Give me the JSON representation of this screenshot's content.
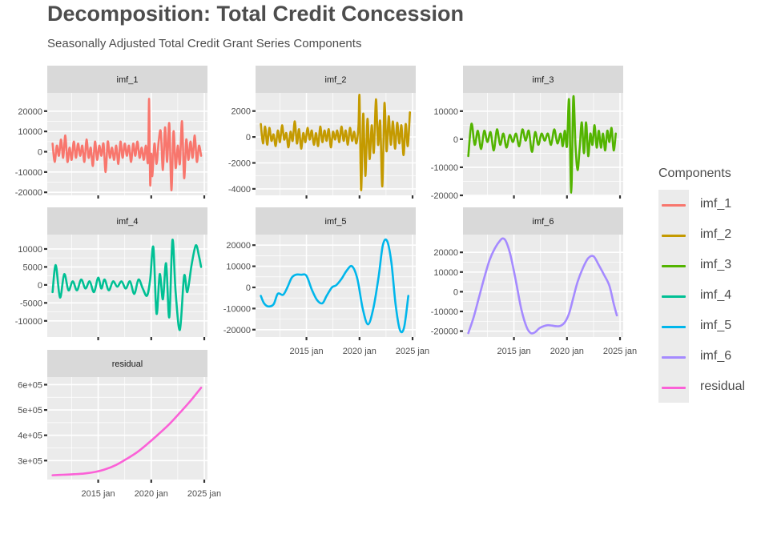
{
  "title": "Decomposition: Total Credit Concession",
  "subtitle": "Seasonally Adjusted Total Credit Grant Series Components",
  "legend": {
    "title": "Components",
    "items": [
      {
        "label": "imf_1",
        "color": "#F8766D"
      },
      {
        "label": "imf_2",
        "color": "#C49A00"
      },
      {
        "label": "imf_3",
        "color": "#53B400"
      },
      {
        "label": "imf_4",
        "color": "#00C094"
      },
      {
        "label": "imf_5",
        "color": "#00B6EB"
      },
      {
        "label": "imf_6",
        "color": "#A58AFF"
      },
      {
        "label": "residual",
        "color": "#FB61D7"
      }
    ]
  },
  "chart_data": {
    "type": "line",
    "facets": "free_y",
    "x_ticks": [
      {
        "label": "2015 jan",
        "value": 2015.0
      },
      {
        "label": "2020 jan",
        "value": 2020.0
      },
      {
        "label": "2025 jan",
        "value": 2025.0
      }
    ],
    "xlim": [
      2010.2,
      2025.3
    ],
    "panels": [
      {
        "name": "imf_1",
        "color": "#F8766D",
        "ylim": [
          -21500,
          29000
        ],
        "yticks": [
          -20000,
          -10000,
          0,
          10000,
          20000
        ],
        "yticklabels": [
          "-20000",
          "-10000",
          "0",
          "10000",
          "20000"
        ],
        "x": [
          2010.7,
          2010.9,
          2011.1,
          2011.3,
          2011.5,
          2011.7,
          2011.9,
          2012.1,
          2012.3,
          2012.5,
          2012.7,
          2012.9,
          2013.1,
          2013.3,
          2013.5,
          2013.7,
          2013.9,
          2014.1,
          2014.3,
          2014.5,
          2014.7,
          2014.9,
          2015.1,
          2015.3,
          2015.5,
          2015.7,
          2015.9,
          2016.1,
          2016.3,
          2016.5,
          2016.7,
          2016.9,
          2017.1,
          2017.3,
          2017.5,
          2017.7,
          2017.9,
          2018.1,
          2018.3,
          2018.5,
          2018.7,
          2018.9,
          2019.1,
          2019.3,
          2019.5,
          2019.7,
          2019.8,
          2019.9,
          2020.0,
          2020.1,
          2020.3,
          2020.5,
          2020.7,
          2020.9,
          2021.1,
          2021.3,
          2021.5,
          2021.7,
          2021.9,
          2022.1,
          2022.3,
          2022.5,
          2022.7,
          2022.9,
          2023.1,
          2023.3,
          2023.5,
          2023.7,
          2023.9,
          2024.1,
          2024.3,
          2024.5,
          2024.7
        ],
        "y": [
          4000,
          -5000,
          3000,
          -2000,
          6000,
          -3000,
          8000,
          -5000,
          2000,
          -4000,
          5000,
          -3000,
          4000,
          -2000,
          3000,
          -5000,
          6000,
          -3000,
          2000,
          -7000,
          5000,
          -4000,
          3000,
          -2000,
          4000,
          -10000,
          5000,
          -3000,
          2000,
          -4000,
          3000,
          -6000,
          5000,
          -3000,
          4000,
          -2000,
          3000,
          -5000,
          4000,
          -2000,
          5000,
          -3000,
          2000,
          -4000,
          3000,
          -5000,
          26000,
          -16000,
          -1000,
          -12000,
          4000,
          -6000,
          5000,
          10000,
          -9000,
          12000,
          -5000,
          14000,
          -19000,
          10000,
          -8000,
          3000,
          -6000,
          15000,
          -13000,
          6000,
          -4000,
          5000,
          -3000,
          8000,
          -5000,
          3000,
          -2000
        ]
      },
      {
        "name": "imf_2",
        "color": "#C49A00",
        "ylim": [
          -4500,
          3400
        ],
        "yticks": [
          -4000,
          -2000,
          0,
          2000
        ],
        "yticklabels": [
          "-4000",
          "-2000",
          "0",
          "2000"
        ],
        "x": [
          2010.7,
          2010.9,
          2011.1,
          2011.3,
          2011.5,
          2011.7,
          2011.9,
          2012.1,
          2012.3,
          2012.5,
          2012.7,
          2012.9,
          2013.1,
          2013.3,
          2013.5,
          2013.7,
          2013.9,
          2014.1,
          2014.3,
          2014.5,
          2014.7,
          2014.9,
          2015.1,
          2015.3,
          2015.5,
          2015.7,
          2015.9,
          2016.1,
          2016.3,
          2016.5,
          2016.7,
          2016.9,
          2017.1,
          2017.3,
          2017.5,
          2017.7,
          2017.9,
          2018.1,
          2018.3,
          2018.5,
          2018.7,
          2018.9,
          2019.1,
          2019.3,
          2019.5,
          2019.7,
          2019.9,
          2020.0,
          2020.15,
          2020.35,
          2020.55,
          2020.75,
          2020.95,
          2021.15,
          2021.35,
          2021.55,
          2021.75,
          2021.95,
          2022.15,
          2022.35,
          2022.55,
          2022.75,
          2022.95,
          2023.15,
          2023.35,
          2023.55,
          2023.75,
          2023.95,
          2024.15,
          2024.35,
          2024.55,
          2024.75
        ],
        "y": [
          1000,
          -500,
          800,
          -600,
          700,
          -300,
          200,
          -700,
          500,
          -400,
          900,
          -200,
          300,
          -800,
          400,
          -300,
          1200,
          -500,
          600,
          -900,
          300,
          -400,
          700,
          -200,
          500,
          -600,
          300,
          -700,
          800,
          -400,
          500,
          -300,
          600,
          -800,
          400,
          -200,
          500,
          -400,
          800,
          -300,
          500,
          -600,
          700,
          -300,
          400,
          -500,
          800,
          3100,
          -4100,
          1800,
          -3000,
          1400,
          -1700,
          900,
          -1200,
          2900,
          -600,
          1200,
          -3800,
          2600,
          -1100,
          1600,
          -600,
          1200,
          -900,
          1100,
          -500,
          900,
          -1400,
          1000,
          -700,
          1900
        ]
      },
      {
        "name": "imf_3",
        "color": "#53B400",
        "ylim": [
          -20000,
          16500
        ],
        "yticks": [
          -20000,
          -10000,
          0,
          10000
        ],
        "yticklabels": [
          "-20000",
          "-10000",
          "0",
          "10000"
        ],
        "x": [
          2010.7,
          2011.0,
          2011.3,
          2011.6,
          2011.9,
          2012.2,
          2012.5,
          2012.8,
          2013.1,
          2013.4,
          2013.7,
          2014.0,
          2014.3,
          2014.6,
          2014.9,
          2015.2,
          2015.5,
          2015.8,
          2016.1,
          2016.4,
          2016.7,
          2017.0,
          2017.3,
          2017.6,
          2017.9,
          2018.2,
          2018.5,
          2018.8,
          2019.1,
          2019.4,
          2019.6,
          2019.8,
          2020.0,
          2020.2,
          2020.4,
          2020.6,
          2020.8,
          2021.0,
          2021.2,
          2021.4,
          2021.6,
          2021.8,
          2022.0,
          2022.2,
          2022.4,
          2022.6,
          2022.8,
          2023.0,
          2023.2,
          2023.4,
          2023.6,
          2023.8,
          2024.0,
          2024.2,
          2024.4,
          2024.6
        ],
        "y": [
          -6000,
          5500,
          -2000,
          3000,
          -3500,
          3000,
          -1000,
          2500,
          -4000,
          3500,
          -2000,
          2000,
          -3000,
          1500,
          -1000,
          2000,
          -2500,
          3500,
          -500,
          3000,
          -4500,
          2500,
          -2000,
          2000,
          -500,
          2000,
          -2000,
          3500,
          -1500,
          2000,
          -2500,
          3000,
          -2500,
          14000,
          -19000,
          15000,
          -2000,
          -11000,
          -3000,
          6000,
          -5000,
          6000,
          -6000,
          2000,
          -2000,
          5000,
          -3000,
          3000,
          -3000,
          2000,
          -4000,
          3000,
          -1000,
          4000,
          -4000,
          2000
        ]
      },
      {
        "name": "imf_4",
        "color": "#00C094",
        "ylim": [
          -14500,
          14000
        ],
        "yticks": [
          -10000,
          -5000,
          0,
          5000,
          10000
        ],
        "yticklabels": [
          "-10000",
          "-5000",
          "0",
          "5000",
          "10000"
        ],
        "x": [
          2010.7,
          2011.0,
          2011.4,
          2011.8,
          2012.2,
          2012.6,
          2013.0,
          2013.4,
          2013.8,
          2014.2,
          2014.6,
          2015.0,
          2015.3,
          2015.6,
          2016.0,
          2016.4,
          2016.8,
          2017.2,
          2017.6,
          2018.0,
          2018.4,
          2018.8,
          2019.2,
          2019.6,
          2019.9,
          2020.2,
          2020.5,
          2020.8,
          2021.1,
          2021.4,
          2021.7,
          2022.0,
          2022.3,
          2022.7,
          2023.1,
          2023.4,
          2023.8,
          2024.2,
          2024.5,
          2024.7
        ],
        "y": [
          -2000,
          5500,
          -3500,
          3000,
          -1500,
          1000,
          -1500,
          1500,
          -1000,
          1000,
          -2000,
          2000,
          -1000,
          1500,
          -1500,
          1000,
          -500,
          1000,
          -1000,
          1000,
          -2500,
          1500,
          -1000,
          -3000,
          1500,
          10500,
          -8000,
          3000,
          -4000,
          6000,
          -9000,
          12500,
          -2000,
          -12500,
          2500,
          -2000,
          5500,
          11000,
          8000,
          5000
        ]
      },
      {
        "name": "imf_5",
        "color": "#00B6EB",
        "ylim": [
          -23500,
          25000
        ],
        "yticks": [
          -20000,
          -10000,
          0,
          10000,
          20000
        ],
        "yticklabels": [
          "-20000",
          "-10000",
          "0",
          "10000",
          "20000"
        ],
        "x": [
          2010.7,
          2011.0,
          2011.4,
          2011.9,
          2012.3,
          2012.8,
          2013.2,
          2013.6,
          2014.0,
          2014.5,
          2015.0,
          2015.5,
          2016.0,
          2016.5,
          2016.9,
          2017.4,
          2017.8,
          2018.3,
          2018.8,
          2019.3,
          2019.8,
          2020.3,
          2020.8,
          2021.3,
          2021.8,
          2022.2,
          2022.6,
          2023.0,
          2023.4,
          2023.8,
          2024.2,
          2024.6
        ],
        "y": [
          -4000,
          -7500,
          -9000,
          -8000,
          -3000,
          -3500,
          0,
          4500,
          6000,
          6000,
          5500,
          -1000,
          -6000,
          -7500,
          -4000,
          0,
          1000,
          4000,
          8000,
          10000,
          4000,
          -10000,
          -17500,
          -10000,
          5000,
          20000,
          22000,
          12000,
          -8000,
          -20000,
          -19000,
          -4000
        ]
      },
      {
        "name": "imf_6",
        "color": "#A58AFF",
        "ylim": [
          -23000,
          29000
        ],
        "yticks": [
          -20000,
          -10000,
          0,
          10000,
          20000
        ],
        "yticklabels": [
          "-20000",
          "-10000",
          "0",
          "10000",
          "20000"
        ],
        "x": [
          2010.7,
          2011.2,
          2011.7,
          2012.2,
          2012.7,
          2013.2,
          2013.7,
          2014.0,
          2014.3,
          2014.7,
          2015.2,
          2015.7,
          2016.2,
          2016.6,
          2017.0,
          2017.4,
          2017.8,
          2018.2,
          2018.6,
          2019.0,
          2019.4,
          2019.8,
          2020.2,
          2020.6,
          2021.0,
          2021.5,
          2022.0,
          2022.5,
          2023.0,
          2023.5,
          2024.0,
          2024.4,
          2024.7
        ],
        "y": [
          -21000,
          -13000,
          -3000,
          7000,
          16000,
          22000,
          26000,
          27000,
          25000,
          18000,
          5000,
          -9000,
          -18000,
          -21000,
          -20500,
          -18500,
          -17500,
          -17000,
          -17200,
          -17500,
          -17300,
          -15500,
          -11000,
          -3000,
          5000,
          12000,
          17000,
          18000,
          13500,
          8500,
          3000,
          -6000,
          -12000
        ]
      },
      {
        "name": "residual",
        "color": "#FB61D7",
        "ylim": [
          225000,
          630000
        ],
        "yticks": [
          300000,
          400000,
          500000,
          600000
        ],
        "yticklabels": [
          "3e+05",
          "4e+05",
          "5e+05",
          "6e+05"
        ],
        "x": [
          2010.7,
          2011.7,
          2012.7,
          2013.7,
          2014.7,
          2015.7,
          2016.7,
          2017.7,
          2018.7,
          2019.7,
          2020.7,
          2021.7,
          2022.7,
          2023.7,
          2024.7
        ],
        "y": [
          242000,
          244000,
          246000,
          249000,
          255000,
          266000,
          283000,
          307000,
          334000,
          368000,
          405000,
          444000,
          489000,
          536000,
          588000
        ]
      }
    ]
  }
}
